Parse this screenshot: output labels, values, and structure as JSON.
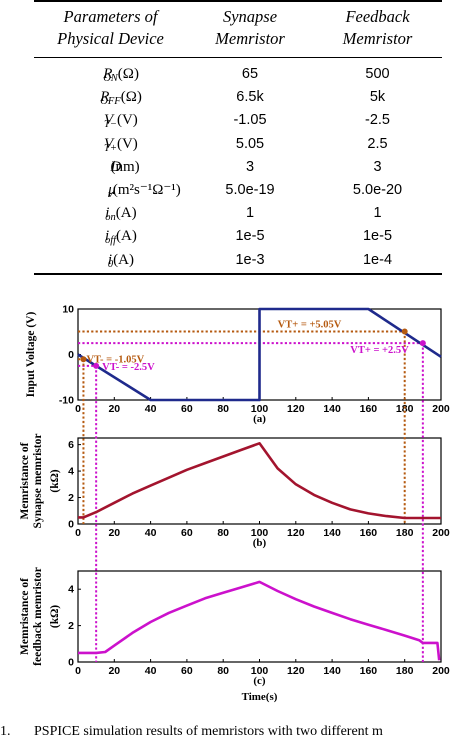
{
  "table": {
    "headers": [
      [
        "Parameters of",
        "Physical Device"
      ],
      [
        "Synapse",
        "Memristor"
      ],
      [
        "Feedback",
        "Memristor"
      ]
    ],
    "rows": [
      {
        "param": "R_ON(Ω)",
        "synapse": "65",
        "feedback": "500"
      },
      {
        "param": "R_OFF(Ω)",
        "synapse": "6.5k",
        "feedback": "5k"
      },
      {
        "param": "V_T−(V)",
        "synapse": "-1.05",
        "feedback": "-2.5"
      },
      {
        "param": "V_T+(V)",
        "synapse": "5.05",
        "feedback": "2.5"
      },
      {
        "param": "D(nm)",
        "synapse": "3",
        "feedback": "3"
      },
      {
        "param": "μ_v(m²s⁻¹Ω⁻¹)",
        "synapse": "5.0e-19",
        "feedback": "5.0e-20"
      },
      {
        "param": "i_on(A)",
        "synapse": "1",
        "feedback": "1"
      },
      {
        "param": "i_off(A)",
        "synapse": "1e-5",
        "feedback": "1e-5"
      },
      {
        "param": "i_0(A)",
        "synapse": "1e-3",
        "feedback": "1e-4"
      }
    ]
  },
  "figure": {
    "colors": {
      "input": "#1f2a8c",
      "synapse": "#a3142e",
      "feedback": "#cc11cc",
      "marker_synapse": "#b55a10",
      "marker_feedback": "#cc11cc",
      "axis": "#000000"
    },
    "panel_labels": [
      "(a)",
      "(b)",
      "(c)"
    ],
    "x_axis_label": "Time(s)",
    "annotations": {
      "vt_plus_synapse": "VT+ = +5.05V",
      "vt_minus_synapse": "VT- = -1.05V",
      "vt_minus_feedback": "VT- = -2.5V",
      "vt_plus_feedback": "VT+ = +2.5V"
    }
  },
  "chart_data": [
    {
      "type": "line",
      "panel": "(a)",
      "xlabel": "",
      "ylabel": "Input Voltage (V)",
      "xlim": [
        0,
        200
      ],
      "ylim": [
        -10,
        10
      ],
      "xticks": [
        0,
        20,
        40,
        60,
        80,
        100,
        120,
        140,
        160,
        180,
        200
      ],
      "yticks": [
        -10,
        0,
        10
      ],
      "x": [
        0,
        40,
        100,
        100,
        160,
        200
      ],
      "values": [
        0,
        -10,
        -10,
        10,
        10,
        -0.5
      ],
      "thresholds": [
        {
          "label": "VT+ = +5.05V",
          "y": 5.05,
          "x": 180
        },
        {
          "label": "VT- = -1.05V",
          "y": -1.05,
          "x": 3
        },
        {
          "label": "VT- = -2.5V",
          "y": -2.5,
          "x": 10
        },
        {
          "label": "VT+ = +2.5V",
          "y": 2.5,
          "x": 190
        }
      ]
    },
    {
      "type": "line",
      "panel": "(b)",
      "xlabel": "",
      "ylabel": "Memristance of Synapse memristor (kΩ)",
      "xlim": [
        0,
        200
      ],
      "ylim": [
        0,
        6.5
      ],
      "xticks": [
        0,
        20,
        40,
        60,
        80,
        100,
        120,
        140,
        160,
        180,
        200
      ],
      "yticks": [
        0,
        2,
        4,
        6
      ],
      "x": [
        0,
        3,
        10,
        20,
        30,
        40,
        50,
        60,
        70,
        80,
        90,
        100,
        110,
        120,
        130,
        140,
        150,
        160,
        170,
        180,
        190,
        200
      ],
      "values": [
        0.5,
        0.5,
        0.9,
        1.6,
        2.3,
        2.9,
        3.5,
        4.1,
        4.6,
        5.1,
        5.6,
        6.1,
        4.2,
        3.0,
        2.2,
        1.6,
        1.1,
        0.8,
        0.6,
        0.45,
        0.45,
        0.45
      ]
    },
    {
      "type": "line",
      "panel": "(c)",
      "xlabel": "Time(s)",
      "ylabel": "Memristance of feedback memristor (kΩ)",
      "xlim": [
        0,
        200
      ],
      "ylim": [
        0,
        5
      ],
      "xticks": [
        0,
        20,
        40,
        60,
        80,
        100,
        120,
        140,
        160,
        180,
        200
      ],
      "yticks": [
        0,
        2,
        4
      ],
      "x": [
        0,
        10,
        15,
        20,
        30,
        40,
        50,
        60,
        70,
        80,
        90,
        100,
        110,
        120,
        130,
        140,
        150,
        160,
        170,
        180,
        188,
        190,
        198,
        199
      ],
      "values": [
        0.5,
        0.5,
        0.55,
        0.9,
        1.6,
        2.2,
        2.7,
        3.1,
        3.5,
        3.8,
        4.1,
        4.4,
        3.9,
        3.45,
        3.05,
        2.7,
        2.35,
        2.05,
        1.75,
        1.45,
        1.2,
        1.05,
        1.05,
        0.1
      ]
    }
  ],
  "caption": {
    "number": "1.",
    "text": "PSPICE simulation results of memristors with two different m"
  }
}
